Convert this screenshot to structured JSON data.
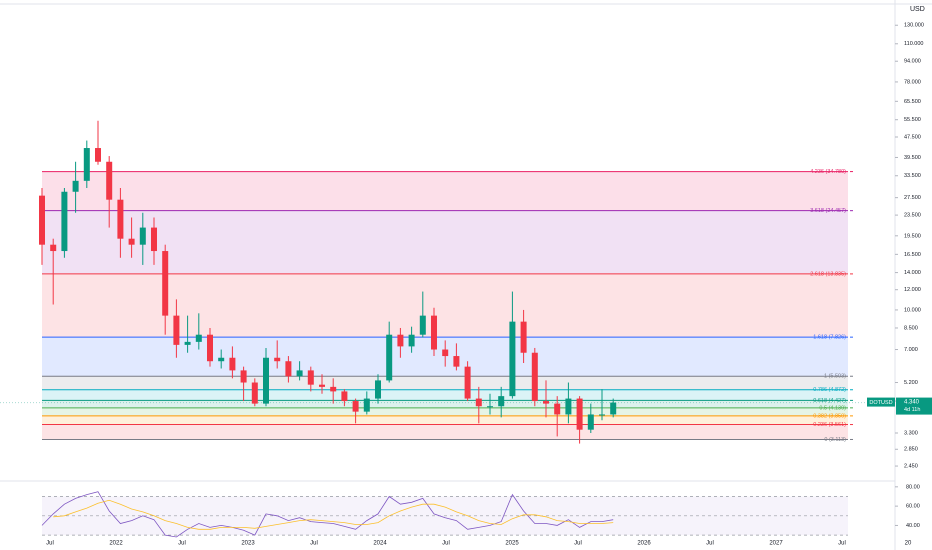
{
  "chart_data": {
    "type": "candlestick",
    "currency": "USD",
    "log_scale": true,
    "ylim": [
      2.2,
      156
    ],
    "yticks": [
      {
        "value": 130,
        "label": "130.000"
      },
      {
        "value": 110,
        "label": "110.000"
      },
      {
        "value": 94,
        "label": "94.000"
      },
      {
        "value": 78,
        "label": "78.000"
      },
      {
        "value": 65.5,
        "label": "65.500"
      },
      {
        "value": 55.5,
        "label": "55.500"
      },
      {
        "value": 47.5,
        "label": "47.500"
      },
      {
        "value": 39.5,
        "label": "39.500"
      },
      {
        "value": 33.5,
        "label": "33.500"
      },
      {
        "value": 27.5,
        "label": "27.500"
      },
      {
        "value": 23.5,
        "label": "23.500"
      },
      {
        "value": 19.5,
        "label": "19.500"
      },
      {
        "value": 16.5,
        "label": "16.500"
      },
      {
        "value": 14,
        "label": "14.000"
      },
      {
        "value": 12,
        "label": "12.000"
      },
      {
        "value": 10,
        "label": "10.000"
      },
      {
        "value": 8.5,
        "label": "8.500"
      },
      {
        "value": 7,
        "label": "7.000"
      },
      {
        "value": 5.2,
        "label": "5.200"
      },
      {
        "value": 4.4,
        "label": "4.400"
      },
      {
        "value": 3.3,
        "label": "3.300"
      },
      {
        "value": 2.85,
        "label": "2.850"
      },
      {
        "value": 2.45,
        "label": "2.450"
      }
    ],
    "x_labels": [
      "Jul",
      "2022",
      "Jul",
      "2023",
      "Jul",
      "2024",
      "Jul",
      "2025",
      "Jul",
      "2026",
      "Jul",
      "2027",
      "Jul",
      "20"
    ],
    "up_color": "#089981",
    "down_color": "#f23645",
    "open": [
      28,
      18,
      17,
      29,
      32,
      43,
      38,
      27,
      19,
      18,
      21,
      17,
      9.5,
      7.3,
      7.5,
      8,
      6.3,
      6.5,
      5.8,
      5.2,
      4.3,
      6.5,
      6.3,
      5.5,
      5.8,
      5.1,
      5.0,
      4.8,
      4.4,
      4.0,
      4.5,
      5.3,
      8.0,
      7.2,
      8.0,
      9.5,
      7.0,
      6.6,
      6.0,
      4.5,
      4.2,
      4.2,
      4.6,
      9.0,
      6.8,
      4.4,
      4.3,
      3.9,
      4.5,
      3.4,
      3.9,
      3.9
    ],
    "high": [
      30,
      19,
      30,
      38,
      46,
      55,
      40,
      30,
      23,
      24,
      23,
      18,
      11,
      9.5,
      9.7,
      8.5,
      7,
      7.2,
      6,
      5.4,
      7.1,
      7.6,
      6.6,
      6.3,
      6,
      5.6,
      5.4,
      4.9,
      4.5,
      4.8,
      5.6,
      9.0,
      8.5,
      8.6,
      11.8,
      10.2,
      7.6,
      7.4,
      6.3,
      5.0,
      4.7,
      5.0,
      11.8,
      10.0,
      7.1,
      5.3,
      4.6,
      5.2,
      4.6,
      4.3,
      4.9,
      4.5
    ],
    "low": [
      15,
      10.5,
      16,
      24,
      30,
      37,
      21,
      16,
      16,
      15,
      15,
      8,
      6.5,
      6.8,
      7,
      6,
      5.9,
      5.4,
      4.4,
      4.2,
      4.2,
      5.9,
      5.2,
      5.3,
      4.8,
      4.7,
      4.3,
      4.2,
      3.6,
      3.9,
      4.3,
      5.2,
      6.5,
      6.8,
      7.8,
      6.6,
      6.0,
      5.8,
      4.4,
      3.6,
      3.9,
      3.8,
      4.5,
      6.2,
      4.2,
      3.8,
      3.2,
      3.6,
      3.0,
      3.3,
      3.7,
      3.8
    ],
    "close": [
      18,
      17,
      29,
      32,
      43,
      38,
      27,
      19,
      18,
      21,
      17,
      9.5,
      7.3,
      7.5,
      8,
      6.3,
      6.5,
      5.8,
      5.2,
      4.3,
      6.5,
      6.3,
      5.5,
      5.8,
      5.1,
      5.0,
      4.8,
      4.4,
      4.0,
      4.5,
      5.3,
      8.0,
      7.2,
      8.0,
      9.5,
      7.0,
      6.6,
      6.0,
      4.5,
      4.2,
      4.2,
      4.6,
      9.0,
      6.8,
      4.4,
      4.3,
      3.9,
      4.5,
      3.4,
      3.9,
      3.9,
      4.34
    ],
    "fib_levels": [
      {
        "label": "4.236 (34.780)",
        "price": 34.78,
        "color": "#e91e63"
      },
      {
        "label": "3.618 (24.457)",
        "price": 24.457,
        "color": "#9c27b0"
      },
      {
        "label": "2.618 (13.835)",
        "price": 13.835,
        "color": "#f23645"
      },
      {
        "label": "1.618 (7.826)",
        "price": 7.826,
        "color": "#2962ff"
      },
      {
        "label": "1 (5.503)",
        "price": 5.503,
        "color": "#787b86"
      },
      {
        "label": "0.786 (4.872)",
        "price": 4.872,
        "color": "#00acc1"
      },
      {
        "label": "0.618 (4.427)",
        "price": 4.427,
        "color": "#089981"
      },
      {
        "label": "0.5 (4.139)",
        "price": 4.139,
        "color": "#4caf50"
      },
      {
        "label": "0.382 (3.850)",
        "price": 3.85,
        "color": "#ff9800"
      },
      {
        "label": "0.236 (3.561)",
        "price": 3.561,
        "color": "#f23645"
      },
      {
        "label": "0 (3.113)",
        "price": 3.113,
        "color": "#787b86"
      }
    ],
    "price_tag": {
      "symbol": "DOTUSD",
      "price": {
        "value": 4.34,
        "label": "4.340"
      },
      "countdown": "4d 11h",
      "color": "#089981"
    },
    "rsi": {
      "ylim": [
        27,
        85
      ],
      "yticks": [
        {
          "value": 80,
          "label": "80.00"
        },
        {
          "value": 60,
          "label": "60.00"
        },
        {
          "value": 40,
          "label": "40.00"
        }
      ],
      "bands": [
        70,
        50,
        30
      ],
      "series": [
        {
          "color": "#7e57c2",
          "values": [
            40,
            52,
            62,
            68,
            72,
            75,
            55,
            42,
            45,
            50,
            46,
            30,
            28,
            36,
            42,
            38,
            40,
            38,
            35,
            30,
            52,
            50,
            45,
            48,
            44,
            43,
            42,
            39,
            36,
            45,
            52,
            70,
            62,
            64,
            68,
            52,
            48,
            45,
            36,
            38,
            40,
            44,
            72,
            55,
            42,
            42,
            40,
            46,
            38,
            44,
            44,
            46
          ]
        },
        {
          "color": "#fbc02d",
          "values": [
            null,
            49,
            50,
            54,
            58,
            63,
            66,
            62,
            57,
            54,
            50,
            45,
            42,
            38,
            36,
            36,
            38,
            38,
            38,
            37,
            39,
            41,
            43,
            45,
            46,
            45,
            44,
            43,
            41,
            41,
            43,
            50,
            55,
            59,
            62,
            62,
            59,
            54,
            50,
            45,
            42,
            41,
            47,
            51,
            51,
            49,
            45,
            44,
            42,
            42,
            42,
            43
          ]
        }
      ]
    }
  }
}
